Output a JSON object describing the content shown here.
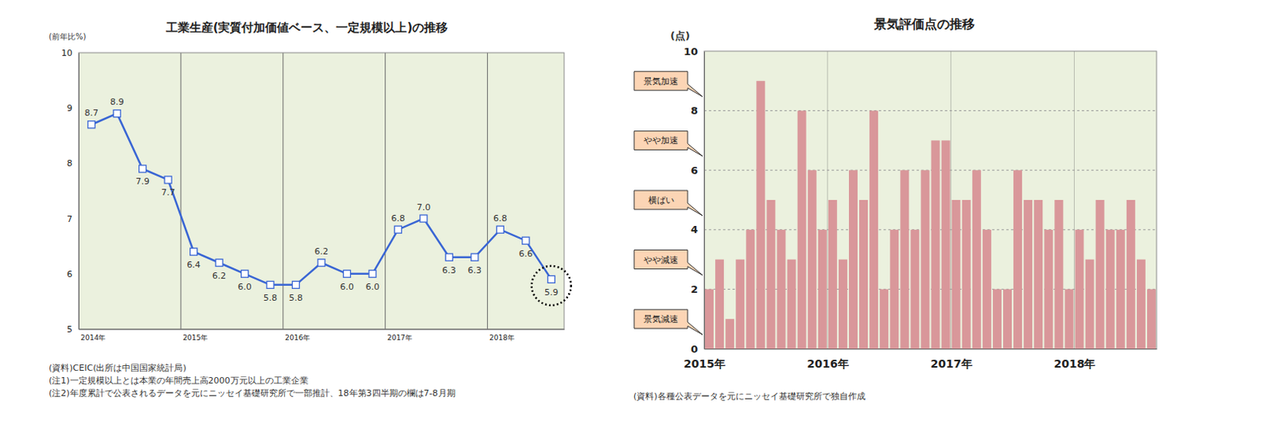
{
  "chart_data": [
    {
      "type": "line",
      "title": "工業生産(実質付加価値ベース、一定規模以上)の推移",
      "y_label": "(前年比%)",
      "categories": [
        "2014年",
        null,
        null,
        null,
        "2015年",
        null,
        null,
        null,
        "2016年",
        null,
        null,
        null,
        "2017年",
        null,
        null,
        null,
        "2018年",
        null,
        null
      ],
      "values": [
        8.7,
        8.9,
        7.9,
        7.7,
        6.4,
        6.2,
        6.0,
        5.8,
        5.8,
        6.2,
        6.0,
        6.0,
        6.8,
        7.0,
        6.3,
        6.3,
        6.8,
        6.6,
        5.9
      ],
      "value_labels": [
        "8.7",
        "8.9",
        "7.9",
        "7.7",
        "6.4",
        "6.2",
        "6.0",
        "5.8",
        "5.8",
        "6.2",
        "6.0",
        "6.0",
        "6.8",
        "7.0",
        "6.3",
        "6.3",
        "6.8",
        "6.6",
        "5.9"
      ],
      "data_labels": true,
      "color": "#3a66d4",
      "marker": "square",
      "ylim": [
        5,
        10
      ],
      "yticks": [
        5,
        6,
        7,
        8,
        9,
        10
      ],
      "grid": true,
      "notes": [
        "(資料)CEIC(出所は中国国家統計局)",
        "(注1)一定規模以上とは本業の年間売上高2000万元以上の工業企業",
        "(注2)年度累計で公表されるデータを元にニッセイ基礎研究所で一部推計、18年第3四半期の欄は7-8月期"
      ]
    },
    {
      "type": "bar",
      "title": "景気評価点の推移",
      "y_label": "(点)",
      "categories": [
        "2015年",
        null,
        null,
        null,
        null,
        null,
        null,
        null,
        null,
        null,
        null,
        null,
        "2016年",
        null,
        null,
        null,
        null,
        null,
        null,
        null,
        null,
        null,
        null,
        null,
        "2017年",
        null,
        null,
        null,
        null,
        null,
        null,
        null,
        null,
        null,
        null,
        null,
        "2018年",
        null,
        null,
        null,
        null,
        null,
        null,
        null
      ],
      "values": [
        2,
        3,
        1,
        3,
        4,
        9,
        5,
        4,
        3,
        8,
        6,
        4,
        5,
        3,
        6,
        5,
        8,
        2,
        4,
        6,
        4,
        6,
        7,
        7,
        5,
        5,
        6,
        4,
        2,
        2,
        6,
        5,
        5,
        4,
        5,
        2,
        4,
        3,
        5,
        4,
        4,
        5,
        3,
        2
      ],
      "color": "#d9979a",
      "ylim": [
        0,
        10
      ],
      "yticks": [
        0,
        2,
        4,
        6,
        8,
        10
      ],
      "grid": true,
      "annotations": [
        {
          "text": "景気加速",
          "y": 9
        },
        {
          "text": "やや加速",
          "y": 7
        },
        {
          "text": "横ばい",
          "y": 5
        },
        {
          "text": "やや減速",
          "y": 3
        },
        {
          "text": "景気減速",
          "y": 1
        }
      ],
      "notes": [
        "(資料)各種公表データを元にニッセイ基礎研究所で独自作成"
      ]
    }
  ]
}
